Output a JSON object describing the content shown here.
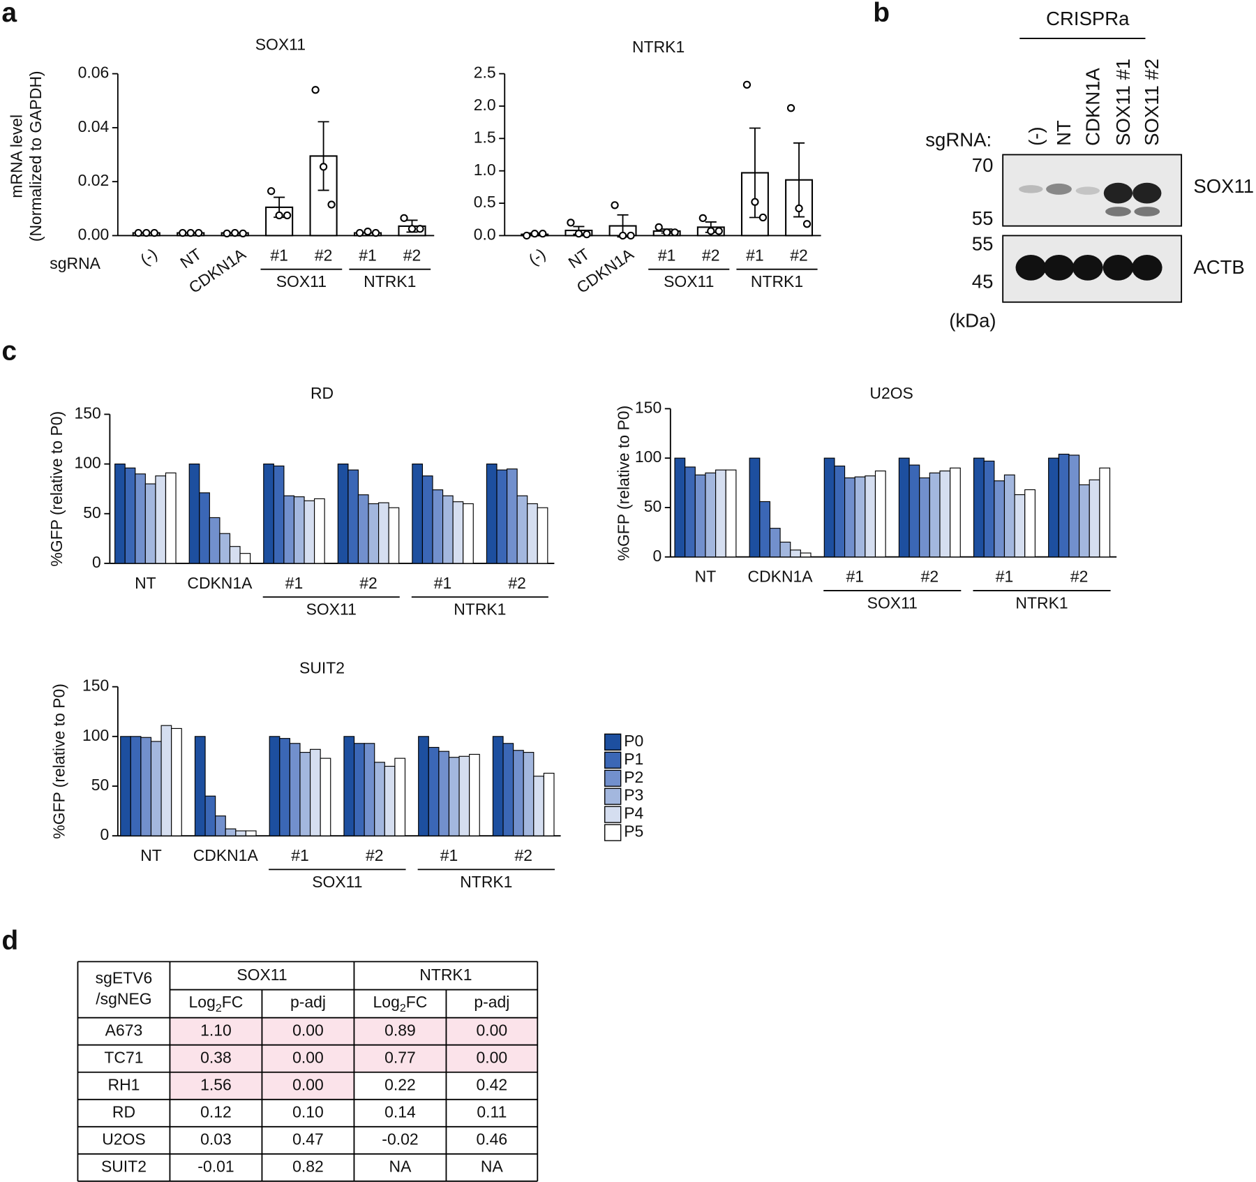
{
  "panel_labels": [
    "a",
    "b",
    "c",
    "d"
  ],
  "chart_data": [
    {
      "type": "bar",
      "title": "SOX11",
      "ylabel": [
        "mRNA level",
        "(Normalized to GAPDH)"
      ],
      "xlabel": "sgRNA",
      "categories": [
        "(-)",
        "NT",
        "CDKN1A",
        "#1",
        "#2",
        "#1",
        "#2"
      ],
      "category_groups": [
        null,
        null,
        null,
        "SOX11",
        "SOX11",
        "NTRK1",
        "NTRK1"
      ],
      "values": [
        0.001,
        0.001,
        0.001,
        0.0105,
        0.0295,
        0.001,
        0.0035
      ],
      "errors": [
        0,
        0,
        0,
        0.0037,
        0.0127,
        0,
        0.0022
      ],
      "points": [
        [
          0.001,
          0.001,
          0.001
        ],
        [
          0.001,
          0.001,
          0.001
        ],
        [
          0.0008,
          0.001,
          0.0008
        ],
        [
          0.0165,
          0.0075,
          0.0075
        ],
        [
          0.054,
          0.0255,
          0.0115
        ],
        [
          0.001,
          0.0015,
          0.001
        ],
        [
          0.0065,
          0.0025,
          0.0025
        ]
      ],
      "color": "#ffffff",
      "ylim": [
        0,
        0.06
      ],
      "yticks": [
        {
          "value": 0,
          "label": "0.00"
        },
        0.02,
        0.04,
        0.06
      ]
    },
    {
      "type": "bar",
      "title": "NTRK1",
      "categories": [
        "(-)",
        "NT",
        "CDKN1A",
        "#1",
        "#2",
        "#1",
        "#2"
      ],
      "category_groups": [
        null,
        null,
        null,
        "SOX11",
        "SOX11",
        "NTRK1",
        "NTRK1"
      ],
      "values": [
        0.02,
        0.08,
        0.15,
        0.07,
        0.13,
        0.97,
        0.86
      ],
      "errors": [
        0.02,
        0.06,
        0.17,
        0.03,
        0.08,
        0.69,
        0.57
      ],
      "points": [
        [
          0,
          0.03,
          0.03
        ],
        [
          0.2,
          0.03,
          0.02
        ],
        [
          0.47,
          0,
          0
        ],
        [
          0.13,
          0.05,
          0.05
        ],
        [
          0.27,
          0.07,
          0.07
        ],
        [
          2.33,
          0.52,
          0.28
        ],
        [
          1.97,
          0.42,
          0.18
        ]
      ],
      "color": "#ffffff",
      "ylim": [
        0,
        2.5
      ],
      "yticks": [
        {
          "value": 0,
          "label": "0.0"
        },
        0.5,
        {
          "value": 1,
          "label": "1.0"
        },
        1.5,
        {
          "value": 2,
          "label": "2.0"
        },
        2.5
      ]
    },
    {
      "type": "bar",
      "title": "RD",
      "ylabel": "%GFP (relative to P0)",
      "categories": [
        "NT",
        "CDKN1A",
        "#1",
        "#2",
        "#1",
        "#2"
      ],
      "category_groups": [
        null,
        null,
        "SOX11",
        "SOX11",
        "NTRK1",
        "NTRK1"
      ],
      "series": [
        {
          "name": "P0",
          "color": "#1d4f9f",
          "values": [
            100,
            100,
            100,
            100,
            100,
            100
          ]
        },
        {
          "name": "P1",
          "color": "#3b67b6",
          "values": [
            96,
            71,
            98,
            94,
            88,
            94
          ]
        },
        {
          "name": "P2",
          "color": "#7290cd",
          "values": [
            90,
            46,
            68,
            69,
            74,
            95
          ]
        },
        {
          "name": "P3",
          "color": "#a3b7de",
          "values": [
            80,
            30,
            67,
            60,
            68,
            68
          ]
        },
        {
          "name": "P4",
          "color": "#d5def0",
          "values": [
            88,
            17,
            63,
            61,
            62,
            60
          ]
        },
        {
          "name": "P5",
          "color": "#ffffff",
          "values": [
            91,
            10,
            65,
            56,
            60,
            56
          ]
        }
      ],
      "ylim": [
        0,
        150
      ],
      "yticks": [
        0,
        50,
        100,
        150
      ]
    },
    {
      "type": "bar",
      "title": "U2OS",
      "ylabel": "%GFP (relative to P0)",
      "categories": [
        "NT",
        "CDKN1A",
        "#1",
        "#2",
        "#1",
        "#2"
      ],
      "category_groups": [
        null,
        null,
        "SOX11",
        "SOX11",
        "NTRK1",
        "NTRK1"
      ],
      "series": [
        {
          "name": "P0",
          "color": "#1d4f9f",
          "values": [
            100,
            100,
            100,
            100,
            100,
            100
          ]
        },
        {
          "name": "P1",
          "color": "#3b67b6",
          "values": [
            91,
            56,
            92,
            93,
            97,
            104
          ]
        },
        {
          "name": "P2",
          "color": "#7290cd",
          "values": [
            83,
            29,
            80,
            80,
            77,
            103
          ]
        },
        {
          "name": "P3",
          "color": "#a3b7de",
          "values": [
            85,
            15,
            81,
            85,
            83,
            73
          ]
        },
        {
          "name": "P4",
          "color": "#d5def0",
          "values": [
            88,
            7,
            82,
            87,
            63,
            78
          ]
        },
        {
          "name": "P5",
          "color": "#ffffff",
          "values": [
            88,
            4,
            87,
            90,
            68,
            90
          ]
        }
      ],
      "ylim": [
        0,
        150
      ],
      "yticks": [
        0,
        50,
        100,
        150
      ]
    },
    {
      "type": "bar",
      "title": "SUIT2",
      "ylabel": "%GFP (relative to P0)",
      "categories": [
        "NT",
        "CDKN1A",
        "#1",
        "#2",
        "#1",
        "#2"
      ],
      "category_groups": [
        null,
        null,
        "SOX11",
        "SOX11",
        "NTRK1",
        "NTRK1"
      ],
      "series": [
        {
          "name": "P0",
          "color": "#1d4f9f",
          "values": [
            100,
            100,
            100,
            100,
            100,
            100
          ]
        },
        {
          "name": "P1",
          "color": "#3b67b6",
          "values": [
            100,
            40,
            98,
            93,
            89,
            93
          ]
        },
        {
          "name": "P2",
          "color": "#7290cd",
          "values": [
            99,
            20,
            93,
            93,
            85,
            86
          ]
        },
        {
          "name": "P3",
          "color": "#a3b7de",
          "values": [
            95,
            7,
            84,
            74,
            79,
            84
          ]
        },
        {
          "name": "P4",
          "color": "#d5def0",
          "values": [
            111,
            5,
            87,
            70,
            80,
            60
          ]
        },
        {
          "name": "P5",
          "color": "#ffffff",
          "values": [
            108,
            5,
            78,
            78,
            82,
            63
          ]
        }
      ],
      "ylim": [
        0,
        150
      ],
      "yticks": [
        0,
        50,
        100,
        150
      ],
      "legend": "right"
    }
  ],
  "blot": {
    "title": "CRISPRa",
    "sgrna_label": "sgRNA:",
    "lanes": [
      "(-)",
      "NT",
      "CDKN1A",
      "SOX11 #1",
      "SOX11 #2"
    ],
    "panels": [
      {
        "protein": "SOX11",
        "markers": [
          70,
          55
        ]
      },
      {
        "protein": "ACTB",
        "markers": [
          55,
          45
        ]
      }
    ],
    "unit": "(kDa)"
  },
  "table": {
    "row_header": [
      "sgETV6",
      "/sgNEG"
    ],
    "groups": [
      "SOX11",
      "NTRK1"
    ],
    "columns": [
      [
        "Log",
        "2",
        "FC"
      ],
      "p-adj",
      [
        "Log",
        "2",
        "FC"
      ],
      "p-adj"
    ],
    "rows": [
      [
        "A673",
        "1.10",
        "0.00",
        "0.89",
        "0.00"
      ],
      [
        "TC71",
        "0.38",
        "0.00",
        "0.77",
        "0.00"
      ],
      [
        "RH1",
        "1.56",
        "0.00",
        "0.22",
        "0.42"
      ],
      [
        "RD",
        "0.12",
        "0.10",
        "0.14",
        "0.11"
      ],
      [
        "U2OS",
        "0.03",
        "0.47",
        "-0.02",
        "0.46"
      ],
      [
        "SUIT2",
        "-0.01",
        "0.82",
        "NA",
        "NA"
      ]
    ],
    "highlight": {
      "color": "#fbe3ea",
      "cells": [
        [
          0,
          1
        ],
        [
          0,
          2
        ],
        [
          0,
          3
        ],
        [
          0,
          4
        ],
        [
          1,
          1
        ],
        [
          1,
          2
        ],
        [
          1,
          3
        ],
        [
          1,
          4
        ],
        [
          2,
          1
        ],
        [
          2,
          2
        ]
      ]
    }
  }
}
